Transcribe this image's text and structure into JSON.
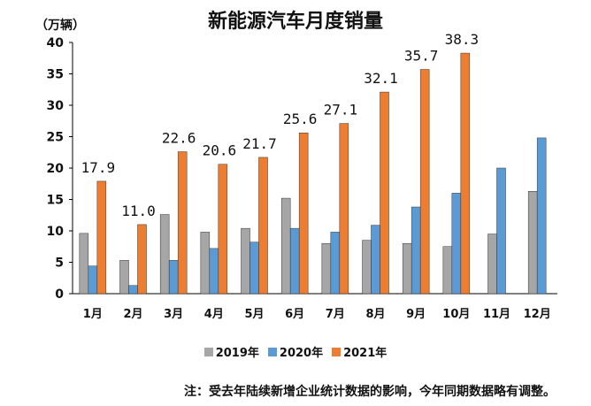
{
  "unit_label": "（万辆）",
  "note": "注：受去年陆续新增企业统计数据的影响，今年同期数据略有调整。",
  "colors": {
    "2019年": "#a6a6a6",
    "2020年": "#5b9bd5",
    "2021年": "#ed7d31"
  },
  "chart_data": {
    "type": "bar",
    "title": "新能源汽车月度销量",
    "xlabel": "",
    "ylabel": "",
    "ylim": [
      0,
      40
    ],
    "yticks": [
      0,
      5,
      10,
      15,
      20,
      25,
      30,
      35,
      40
    ],
    "grid": false,
    "legend": "bottom",
    "categories": [
      "1月",
      "2月",
      "3月",
      "4月",
      "5月",
      "6月",
      "7月",
      "8月",
      "9月",
      "10月",
      "11月",
      "12月"
    ],
    "series": [
      {
        "name": "2019年",
        "values": [
          9.6,
          5.3,
          12.6,
          9.8,
          10.4,
          15.2,
          8.0,
          8.5,
          8.0,
          7.5,
          9.5,
          16.3
        ]
      },
      {
        "name": "2020年",
        "values": [
          4.4,
          1.3,
          5.3,
          7.2,
          8.2,
          10.4,
          9.8,
          10.9,
          13.8,
          16.0,
          20.0,
          24.8
        ]
      },
      {
        "name": "2021年",
        "values": [
          17.9,
          11.0,
          22.6,
          20.6,
          21.7,
          25.6,
          27.1,
          32.1,
          35.7,
          38.3,
          null,
          null
        ]
      }
    ],
    "data_labels": {
      "series": "2021年",
      "values": [
        "17.9",
        "11.0",
        "22.6",
        "20.6",
        "21.7",
        "25.6",
        "27.1",
        "32.1",
        "35.7",
        "38.3"
      ]
    }
  }
}
